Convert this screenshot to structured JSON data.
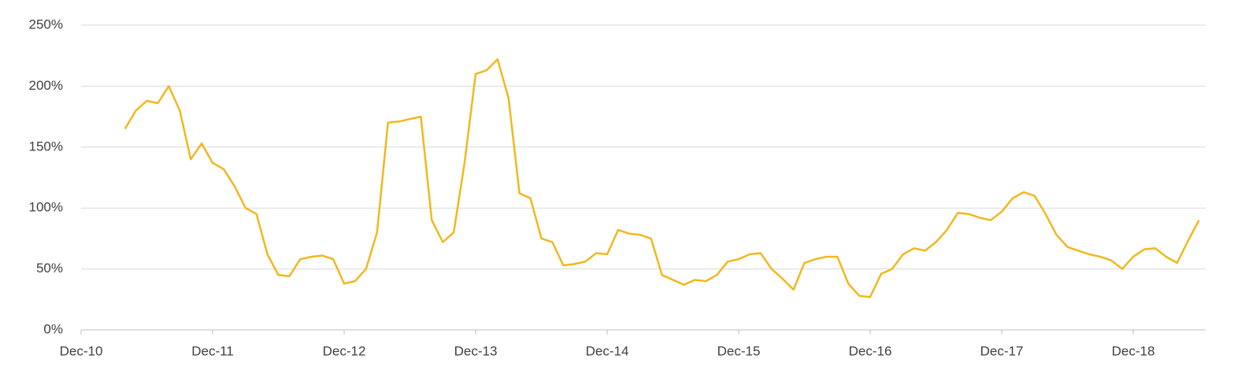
{
  "chart_data": {
    "type": "line",
    "categories": [
      "Dec-10",
      null,
      null,
      null,
      null,
      null,
      null,
      null,
      null,
      null,
      null,
      null,
      "Dec-11",
      null,
      null,
      null,
      null,
      null,
      null,
      null,
      null,
      null,
      null,
      null,
      "Dec-12",
      null,
      null,
      null,
      null,
      null,
      null,
      null,
      null,
      null,
      null,
      null,
      "Dec-13",
      null,
      null,
      null,
      null,
      null,
      null,
      null,
      null,
      null,
      null,
      null,
      "Dec-14",
      null,
      null,
      null,
      null,
      null,
      null,
      null,
      null,
      null,
      null,
      null,
      "Dec-15",
      null,
      null,
      null,
      null,
      null,
      null,
      null,
      null,
      null,
      null,
      null,
      "Dec-16",
      null,
      null,
      null,
      null,
      null,
      null,
      null,
      null,
      null,
      null,
      null,
      "Dec-17",
      null,
      null,
      null,
      null,
      null,
      null,
      null,
      null,
      null,
      null,
      null,
      "Dec-18",
      null,
      null,
      null,
      null,
      null,
      null
    ],
    "series": [
      {
        "color": "#f0b81f",
        "values": [
          null,
          null,
          null,
          null,
          165,
          180,
          188,
          186,
          200,
          180,
          140,
          153,
          137,
          132,
          118,
          100,
          95,
          62,
          45,
          44,
          58,
          60,
          61,
          58,
          38,
          40,
          50,
          80,
          170,
          171,
          173,
          175,
          90,
          72,
          80,
          138,
          210,
          213,
          222,
          190,
          112,
          108,
          75,
          72,
          53,
          54,
          56,
          63,
          62,
          82,
          79,
          78,
          75,
          45,
          41,
          37,
          41,
          40,
          45,
          56,
          58,
          62,
          63,
          50,
          42,
          33,
          55,
          58,
          60,
          60,
          38,
          28,
          27,
          46,
          50,
          62,
          67,
          65,
          72,
          82,
          96,
          95,
          92,
          90,
          97,
          108,
          113,
          110,
          95,
          78,
          68,
          65,
          62,
          60,
          57,
          50,
          60,
          66,
          67,
          60,
          55,
          73,
          90
        ]
      }
    ],
    "ylim": [
      0,
      250
    ],
    "yticks": [
      {
        "value": 0,
        "label": "0%"
      },
      {
        "value": 50,
        "label": "50%"
      },
      {
        "value": 100,
        "label": "100%"
      },
      {
        "value": 150,
        "label": "150%"
      },
      {
        "value": 200,
        "label": "200%"
      },
      {
        "value": 250,
        "label": "250%"
      }
    ],
    "grid": true
  }
}
